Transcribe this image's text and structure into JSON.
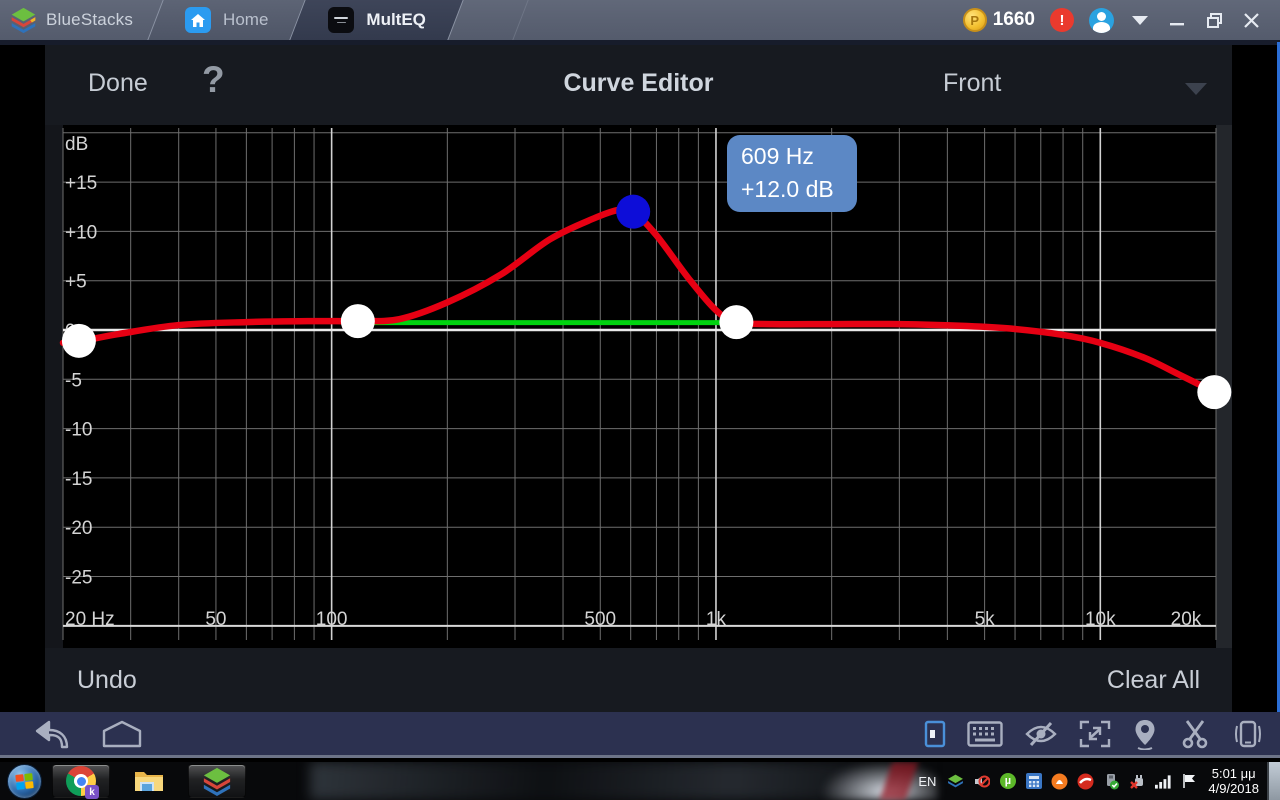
{
  "titlebar": {
    "brand": "BlueStacks",
    "tabs": [
      {
        "label": "Home"
      },
      {
        "label": "MultEQ"
      }
    ],
    "coin_letter": "P",
    "coin_count": "1660",
    "alert": "!"
  },
  "app": {
    "header": {
      "done": "Done",
      "help": "?",
      "title": "Curve Editor",
      "channel": "Front"
    },
    "footer": {
      "undo": "Undo",
      "clear_all": "Clear All"
    }
  },
  "chart_data": {
    "type": "line",
    "x_scale": "log",
    "xlim": [
      20,
      20000
    ],
    "ylim_db": [
      -30,
      20
    ],
    "y_unit_label": "dB",
    "grid_step_db": 5,
    "y_tick_labels": [
      {
        "db": 15,
        "label": "+15"
      },
      {
        "db": 10,
        "label": "+10"
      },
      {
        "db": 5,
        "label": "+5"
      },
      {
        "db": 0,
        "label": "0"
      },
      {
        "db": -5,
        "label": "-5"
      },
      {
        "db": -10,
        "label": "-10"
      },
      {
        "db": -15,
        "label": "-15"
      },
      {
        "db": -20,
        "label": "-20"
      },
      {
        "db": -25,
        "label": "-25"
      }
    ],
    "y_minor_gridlines_db": [
      20,
      15,
      10,
      5,
      -5,
      -10,
      -15,
      -20,
      -25
    ],
    "x_gridlines_hz": [
      20,
      30,
      40,
      50,
      60,
      70,
      80,
      90,
      100,
      200,
      300,
      400,
      500,
      600,
      700,
      800,
      900,
      1000,
      2000,
      3000,
      4000,
      5000,
      6000,
      7000,
      8000,
      9000,
      10000,
      20000
    ],
    "x_major_gridlines_hz": [
      100,
      1000,
      10000
    ],
    "x_tick_labels": [
      {
        "hz": 20,
        "label": "20 Hz"
      },
      {
        "hz": 50,
        "label": "50"
      },
      {
        "hz": 100,
        "label": "100"
      },
      {
        "hz": 500,
        "label": "500"
      },
      {
        "hz": 1000,
        "label": "1k"
      },
      {
        "hz": 5000,
        "label": "5k"
      },
      {
        "hz": 10000,
        "label": "10k"
      },
      {
        "hz": 20000,
        "label": "20k"
      }
    ],
    "curve_hz_db": [
      [
        20,
        -1.3
      ],
      [
        22.4,
        -1.1
      ],
      [
        28,
        -0.4
      ],
      [
        40,
        0.5
      ],
      [
        60,
        0.8
      ],
      [
        90,
        0.9
      ],
      [
        117,
        0.9
      ],
      [
        150,
        1.1
      ],
      [
        200,
        2.8
      ],
      [
        275,
        5.6
      ],
      [
        370,
        9.2
      ],
      [
        480,
        11.3
      ],
      [
        560,
        12.2
      ],
      [
        609,
        12.0
      ],
      [
        700,
        9.6
      ],
      [
        850,
        5.2
      ],
      [
        1000,
        2.0
      ],
      [
        1130,
        0.8
      ],
      [
        1400,
        0.6
      ],
      [
        2000,
        0.6
      ],
      [
        3000,
        0.6
      ],
      [
        4500,
        0.4
      ],
      [
        6000,
        0.1
      ],
      [
        8000,
        -0.5
      ],
      [
        10000,
        -1.3
      ],
      [
        13000,
        -2.8
      ],
      [
        16000,
        -4.5
      ],
      [
        19800,
        -6.3
      ]
    ],
    "control_points": [
      {
        "hz": 22,
        "db": -1.1,
        "selected": false
      },
      {
        "hz": 117,
        "db": 0.9,
        "selected": false
      },
      {
        "hz": 609,
        "db": 12.0,
        "selected": true
      },
      {
        "hz": 1130,
        "db": 0.8,
        "selected": false
      },
      {
        "hz": 19800,
        "db": -6.3,
        "selected": false
      }
    ],
    "reference_segment": {
      "from_hz": 117,
      "to_hz": 1130,
      "db": 0.75
    },
    "selected_point_label": {
      "freq": "609 Hz",
      "gain": "+12.0 dB"
    },
    "colors": {
      "curve": "#e60013",
      "reference": "#00d30f",
      "point": "#ffffff",
      "selected_point": "#0d0dd8",
      "grid_minor": "#6e6e6e",
      "grid_major": "#d2d2d2",
      "zero_line": "#eaeaea",
      "baseline": "#d8d8d8",
      "label": "#d4d4d4",
      "tooltip_bg": "#5c88c5"
    }
  },
  "taskbar": {
    "language": "EN",
    "time": "5:01 μμ",
    "date": "4/9/2018",
    "chrome_badge": "k",
    "utorrent_letter": "µ"
  }
}
